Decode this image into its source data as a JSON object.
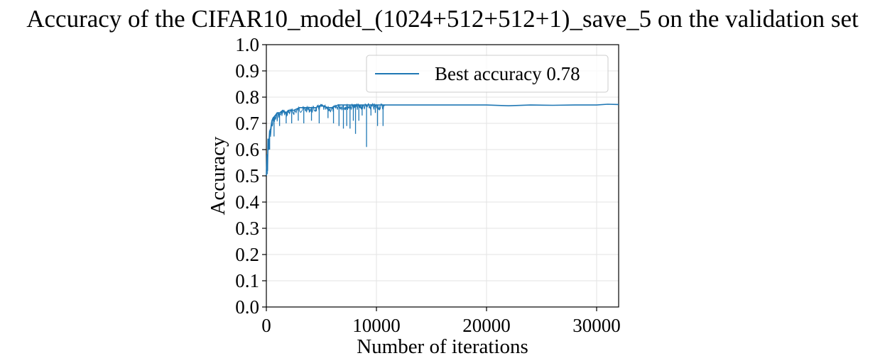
{
  "chart_data": {
    "type": "line",
    "title": "Accuracy of the CIFAR10_model_(1024+512+512+1)_save_5 on the validation set",
    "xlabel": "Number of iterations",
    "ylabel": "Accuracy",
    "xlim": [
      0,
      32000
    ],
    "ylim": [
      0.0,
      1.0
    ],
    "xticks": [
      0,
      10000,
      20000,
      30000
    ],
    "xtick_labels": [
      "0",
      "10000",
      "20000",
      "30000"
    ],
    "yticks": [
      0.0,
      0.1,
      0.2,
      0.3,
      0.4,
      0.5,
      0.6,
      0.7,
      0.8,
      0.9,
      1.0
    ],
    "ytick_labels": [
      "0.0",
      "0.1",
      "0.2",
      "0.3",
      "0.4",
      "0.5",
      "0.6",
      "0.7",
      "0.8",
      "0.9",
      "1.0"
    ],
    "grid": true,
    "legend_position": "top-right",
    "series": [
      {
        "name": "Best accuracy 0.78",
        "color": "#1f77b4",
        "x": [
          0,
          50,
          100,
          150,
          200,
          300,
          400,
          500,
          600,
          800,
          1000,
          1200,
          1500,
          1800,
          2000,
          2500,
          3000,
          3500,
          4000,
          4500,
          5000,
          5500,
          6000,
          6500,
          7000,
          7500,
          8000,
          8500,
          9000,
          9200,
          9400,
          9600,
          9800,
          10000,
          10300,
          10500,
          10700,
          11000,
          12000,
          14000,
          16000,
          18000,
          20000,
          22000,
          24000,
          26000,
          28000,
          30000,
          31000,
          32000
        ],
        "y": [
          0.5,
          0.58,
          0.52,
          0.64,
          0.6,
          0.67,
          0.68,
          0.71,
          0.72,
          0.73,
          0.74,
          0.74,
          0.75,
          0.74,
          0.75,
          0.75,
          0.76,
          0.76,
          0.76,
          0.76,
          0.77,
          0.76,
          0.76,
          0.77,
          0.77,
          0.77,
          0.77,
          0.77,
          0.77,
          0.77,
          0.77,
          0.77,
          0.77,
          0.77,
          0.77,
          0.77,
          0.77,
          0.77,
          0.77,
          0.77,
          0.77,
          0.77,
          0.77,
          0.767,
          0.77,
          0.769,
          0.77,
          0.77,
          0.773,
          0.772
        ]
      }
    ],
    "noise_dips": [
      {
        "x": 300,
        "y": 0.6
      },
      {
        "x": 700,
        "y": 0.65
      },
      {
        "x": 1200,
        "y": 0.69
      },
      {
        "x": 1800,
        "y": 0.7
      },
      {
        "x": 2300,
        "y": 0.7
      },
      {
        "x": 2900,
        "y": 0.71
      },
      {
        "x": 3400,
        "y": 0.7
      },
      {
        "x": 4100,
        "y": 0.71
      },
      {
        "x": 4800,
        "y": 0.7
      },
      {
        "x": 5600,
        "y": 0.72
      },
      {
        "x": 6100,
        "y": 0.7
      },
      {
        "x": 6600,
        "y": 0.69
      },
      {
        "x": 7000,
        "y": 0.68
      },
      {
        "x": 7300,
        "y": 0.69
      },
      {
        "x": 7600,
        "y": 0.68
      },
      {
        "x": 7900,
        "y": 0.71
      },
      {
        "x": 8100,
        "y": 0.66
      },
      {
        "x": 8400,
        "y": 0.71
      },
      {
        "x": 8700,
        "y": 0.73
      },
      {
        "x": 9100,
        "y": 0.61
      },
      {
        "x": 9500,
        "y": 0.73
      },
      {
        "x": 9900,
        "y": 0.74
      },
      {
        "x": 10100,
        "y": 0.69
      },
      {
        "x": 10600,
        "y": 0.69
      }
    ]
  }
}
